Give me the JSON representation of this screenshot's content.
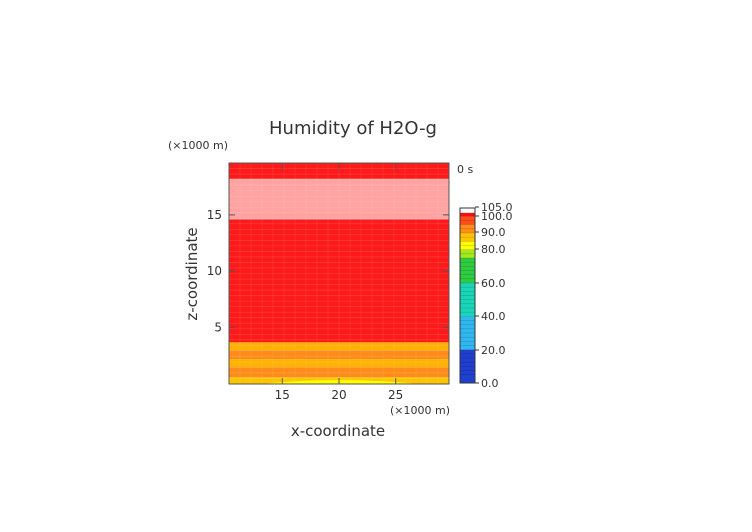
{
  "chart_data": {
    "type": "heatmap",
    "title": "Humidity of H2O-g",
    "xlabel": "x-coordinate",
    "ylabel": "z-coordinate",
    "x_unit": "(×1000 m)",
    "z_unit": "(×1000 m)",
    "time_label": "0 s",
    "xlim": [
      10.3,
      29.7
    ],
    "ylim": [
      0,
      19.6
    ],
    "x_ticks": [
      15,
      20,
      25
    ],
    "y_ticks": [
      5,
      10,
      15
    ],
    "colorbar": {
      "labels": [
        "105.0",
        "100.0",
        "90.0",
        "80.0",
        "60.0",
        "40.0",
        "20.0",
        "0.0"
      ],
      "levels": [
        {
          "from": 0,
          "to": 20,
          "color": "#1f3fd0"
        },
        {
          "from": 20,
          "to": 40,
          "color": "#2fb8ef"
        },
        {
          "from": 40,
          "to": 60,
          "color": "#19d6b8"
        },
        {
          "from": 60,
          "to": 75,
          "color": "#2ecc40"
        },
        {
          "from": 75,
          "to": 80,
          "color": "#a4e81e"
        },
        {
          "from": 80,
          "to": 85,
          "color": "#ffff00"
        },
        {
          "from": 85,
          "to": 90,
          "color": "#ffc400"
        },
        {
          "from": 90,
          "to": 95,
          "color": "#ff8c1a"
        },
        {
          "from": 95,
          "to": 100,
          "color": "#ff4d1a"
        },
        {
          "from": 100,
          "to": 102,
          "color": "#ff0d0d"
        },
        {
          "from": 102,
          "to": 105,
          "color": "#ffffff"
        }
      ]
    },
    "bands": [
      {
        "z0": 0,
        "z1": 0.6,
        "color": "#ffc400",
        "label": "85-90"
      },
      {
        "z0": 0.6,
        "z1": 1.5,
        "color": "#ff8c1a",
        "label": "90-95"
      },
      {
        "z0": 1.5,
        "z1": 2.2,
        "color": "#ffb300",
        "label": "88-92"
      },
      {
        "z0": 2.2,
        "z1": 3.0,
        "color": "#ff8c1a",
        "label": "90-95"
      },
      {
        "z0": 3.0,
        "z1": 3.7,
        "color": "#ffb000",
        "label": "85-90"
      },
      {
        "z0": 3.7,
        "z1": 14.6,
        "color": "#ff1a1a",
        "label": "~100"
      },
      {
        "z0": 14.6,
        "z1": 18.2,
        "color": "#ffa3a3",
        "label": ">100"
      },
      {
        "z0": 18.2,
        "z1": 19.6,
        "color": "#ff1a1a",
        "label": "~100"
      }
    ],
    "bottom_pocket": {
      "x0": 13,
      "x1": 27,
      "z_peak": 0.35,
      "color": "#ffff00",
      "label": "80-85"
    }
  }
}
